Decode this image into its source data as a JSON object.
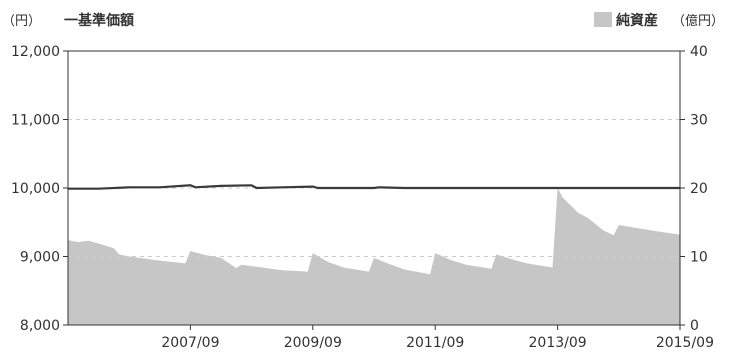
{
  "legend": {
    "left_unit": "（円）",
    "left_label": "一基準価額",
    "right_label": "純資産",
    "right_unit": "（億円）"
  },
  "colors": {
    "area": "#c6c6c6",
    "line": "#3a3a3a",
    "grid": "#cccccc",
    "axis": "#333333"
  },
  "chart_data": {
    "type": "area",
    "left_axis": {
      "unit": "（円）",
      "ylim": [
        8000,
        12000
      ],
      "ticks": [
        "8,000",
        "9,000",
        "10,000",
        "11,000",
        "12,000"
      ],
      "tick_values": [
        8000,
        9000,
        10000,
        11000,
        12000
      ]
    },
    "right_axis": {
      "unit": "（億円）",
      "ylim": [
        0,
        40
      ],
      "ticks": [
        "0",
        "10",
        "20",
        "30",
        "40"
      ],
      "tick_values": [
        0,
        10,
        20,
        30,
        40
      ]
    },
    "x_axis": {
      "range": [
        "2005/09",
        "2015/09"
      ],
      "ticks": [
        "2007/09",
        "2009/09",
        "2011/09",
        "2013/09",
        "2015/09"
      ]
    },
    "grid": true,
    "series": [
      {
        "name": "一基準価額",
        "axis": "left",
        "type": "line",
        "x": [
          "2005/09",
          "2006/03",
          "2006/09",
          "2007/03",
          "2007/09",
          "2007/10",
          "2008/03",
          "2008/09",
          "2008/10",
          "2009/03",
          "2009/09",
          "2009/10",
          "2010/03",
          "2010/09",
          "2010/10",
          "2011/03",
          "2011/09",
          "2012/03",
          "2012/09",
          "2013/03",
          "2013/09",
          "2014/03",
          "2014/09",
          "2015/03",
          "2015/09"
        ],
        "values": [
          9990,
          9990,
          10010,
          10010,
          10040,
          10010,
          10030,
          10040,
          10000,
          10010,
          10020,
          10000,
          10000,
          10000,
          10010,
          10000,
          10000,
          10000,
          10000,
          10000,
          10000,
          10000,
          10000,
          10000,
          10000
        ]
      },
      {
        "name": "純資産",
        "axis": "right",
        "type": "area",
        "x": [
          "2005/09",
          "2005/11",
          "2006/01",
          "2006/03",
          "2006/06",
          "2006/07",
          "2006/09",
          "2007/03",
          "2007/08",
          "2007/09",
          "2007/12",
          "2008/03",
          "2008/06",
          "2008/07",
          "2008/09",
          "2009/03",
          "2009/08",
          "2009/09",
          "2009/12",
          "2010/03",
          "2010/08",
          "2010/09",
          "2010/12",
          "2011/03",
          "2011/08",
          "2011/09",
          "2011/12",
          "2012/03",
          "2012/08",
          "2012/09",
          "2012/12",
          "2013/03",
          "2013/08",
          "2013/09",
          "2013/10",
          "2014/01",
          "2014/03",
          "2014/06",
          "2014/08",
          "2014/09",
          "2015/01",
          "2015/05",
          "2015/09"
        ],
        "values": [
          12.4,
          12.1,
          12.3,
          11.9,
          11.2,
          10.3,
          10.0,
          9.4,
          9.0,
          10.8,
          10.2,
          9.8,
          8.3,
          8.8,
          8.6,
          8.0,
          7.8,
          10.5,
          9.2,
          8.4,
          7.8,
          9.8,
          8.9,
          8.1,
          7.4,
          10.5,
          9.5,
          8.8,
          8.2,
          10.3,
          9.6,
          9.0,
          8.4,
          20.0,
          18.6,
          16.4,
          15.6,
          13.8,
          13.1,
          14.6,
          14.1,
          13.6,
          13.2
        ]
      }
    ]
  }
}
